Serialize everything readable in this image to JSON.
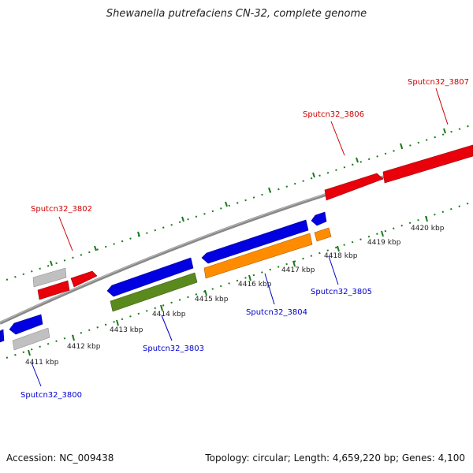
{
  "title": "Shewanella putrefaciens CN-32, complete genome",
  "footer": {
    "accession": "Accession: NC_009438",
    "summary": "Topology: circular; Length: 4,659,220 bp; Genes: 4,100"
  },
  "colors": {
    "forward_gene": "#e8000b",
    "reverse_gene": "#0000e0",
    "orange_gene": "#ff8c00",
    "green_gene": "#5a8a1e",
    "gray_gene": "#c0c0c0",
    "backbone": "#888888",
    "tick": "#1a7a1a",
    "forward_label": "#cc0000",
    "reverse_label": "#0000cc"
  },
  "scale_labels": [
    {
      "kbp": 4411,
      "text": "4411 kbp"
    },
    {
      "kbp": 4412,
      "text": "4412 kbp"
    },
    {
      "kbp": 4413,
      "text": "4413 kbp"
    },
    {
      "kbp": 4414,
      "text": "4414 kbp"
    },
    {
      "kbp": 4415,
      "text": "4415 kbp"
    },
    {
      "kbp": 4416,
      "text": "4416 kbp"
    },
    {
      "kbp": 4417,
      "text": "4417 kbp"
    },
    {
      "kbp": 4418,
      "text": "4418 kbp"
    },
    {
      "kbp": 4419,
      "text": "4419 kbp"
    },
    {
      "kbp": 4420,
      "text": "4420 kbp"
    }
  ],
  "gene_labels": [
    {
      "text": "Sputcn32_3800",
      "strand": "reverse"
    },
    {
      "text": "Sputcn32_3802",
      "strand": "forward"
    },
    {
      "text": "Sputcn32_3803",
      "strand": "reverse"
    },
    {
      "text": "Sputcn32_3804",
      "strand": "reverse"
    },
    {
      "text": "Sputcn32_3805",
      "strand": "reverse"
    },
    {
      "text": "Sputcn32_3806",
      "strand": "forward"
    },
    {
      "text": "Sputcn32_3807",
      "strand": "forward"
    }
  ]
}
